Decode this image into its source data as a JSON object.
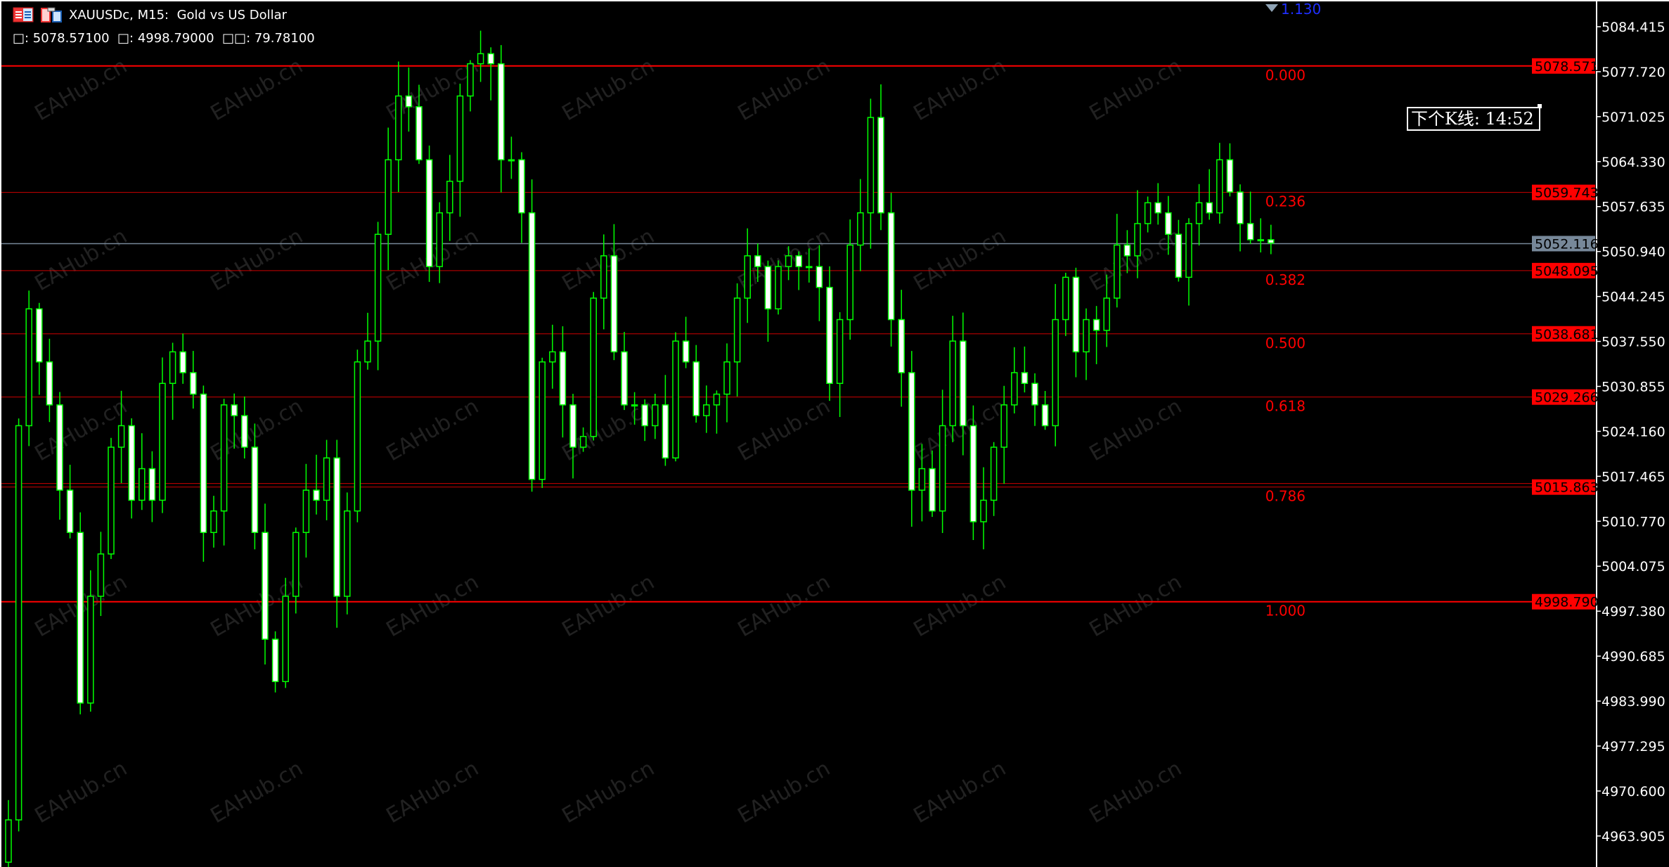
{
  "header": {
    "title": "XAUUSDc, M15:  Gold vs US Dollar",
    "ohlc_line": "□: 5078.57100  □: 4998.79000  □□: 79.78100",
    "icons": [
      "chart-window-icon",
      "symbol-icon"
    ]
  },
  "countdown": {
    "text": "下个K线: 14:52"
  },
  "top_marker": {
    "text": "1.130"
  },
  "watermark": "EAHub.cn",
  "colors": {
    "bull_body": "#000000",
    "bear_body": "#ffffff",
    "candle_outline": "#00ff00",
    "fibo": "#ff0000",
    "current_price": "#778899",
    "axis_text": "#ffffff"
  },
  "chart_data": {
    "type": "candlestick",
    "symbol": "XAUUSDc",
    "timeframe": "M15",
    "ylim": [
      4955.0,
      5088.4
    ],
    "y_ticks": [
      "5084.415",
      "5077.720",
      "5071.025",
      "5064.330",
      "5057.635",
      "5050.940",
      "5044.245",
      "5037.550",
      "5030.855",
      "5024.160",
      "5017.465",
      "5010.770",
      "5004.075",
      "4997.380",
      "4990.685",
      "4983.990",
      "4977.295",
      "4970.600",
      "4963.905"
    ],
    "current_price": "5052.116",
    "first_open": 4960.0,
    "closes": [
      4966.3,
      5025.0,
      5042.4,
      5034.5,
      5028.1,
      5015.4,
      5009.1,
      4983.7,
      4999.6,
      5005.9,
      5021.8,
      5025.0,
      5013.9,
      5018.6,
      5013.9,
      5031.3,
      5036.0,
      5032.9,
      5029.7,
      5009.1,
      5012.3,
      5028.1,
      5026.5,
      5021.8,
      5009.1,
      4993.2,
      4986.9,
      4999.6,
      5009.1,
      5015.4,
      5013.9,
      5020.2,
      4999.6,
      5012.3,
      5034.5,
      5037.6,
      5053.5,
      5064.6,
      5074.1,
      5072.5,
      5064.6,
      5048.7,
      5056.7,
      5061.4,
      5074.1,
      5078.9,
      5080.4,
      5078.9,
      5064.6,
      5064.6,
      5056.7,
      5017.0,
      5034.5,
      5036.0,
      5028.1,
      5021.8,
      5023.4,
      5044.0,
      5050.3,
      5036.0,
      5028.1,
      5028.1,
      5025.0,
      5028.1,
      5020.2,
      5037.6,
      5034.5,
      5026.5,
      5028.1,
      5029.7,
      5034.5,
      5044.0,
      5050.3,
      5048.7,
      5042.4,
      5048.7,
      5050.3,
      5048.7,
      5048.7,
      5045.6,
      5031.3,
      5040.8,
      5051.9,
      5056.7,
      5070.9,
      5056.7,
      5040.8,
      5032.9,
      5015.4,
      5018.6,
      5012.3,
      5025.0,
      5037.6,
      5025.0,
      5010.7,
      5013.9,
      5021.8,
      5028.1,
      5032.9,
      5031.3,
      5028.1,
      5025.0,
      5040.8,
      5047.1,
      5036.0,
      5040.8,
      5039.2,
      5044.0,
      5051.9,
      5050.3,
      5055.1,
      5058.2,
      5056.7,
      5053.5,
      5047.1,
      5055.1,
      5058.2,
      5056.7,
      5064.6,
      5059.8,
      5055.1,
      5052.7,
      5052.7,
      5052.2
    ],
    "fibo_levels": [
      {
        "ratio": "0.000",
        "price": "5078.571",
        "major": true
      },
      {
        "ratio": "0.236",
        "price": "5059.743",
        "major": false
      },
      {
        "ratio": "0.382",
        "price": "5048.095",
        "major": false
      },
      {
        "ratio": "0.500",
        "price": "5038.681",
        "major": false
      },
      {
        "ratio": "0.618",
        "price": "5029.266",
        "major": false
      },
      {
        "ratio": "0.786",
        "price": "5015.863",
        "major": false
      },
      {
        "ratio": "1.000",
        "price": "4998.790",
        "major": true
      }
    ]
  }
}
